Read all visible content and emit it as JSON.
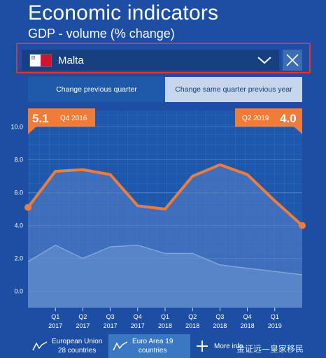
{
  "header": {
    "title": "Economic indicators",
    "subtitle": "GDP - volume (% change)"
  },
  "country_select": {
    "selected": "Malta",
    "flag_icon": "malta-flag-icon",
    "dropdown_icon": "chevron-down-icon",
    "clear_icon": "close-icon"
  },
  "toggle": {
    "options": [
      "Change previous quarter",
      "Change same quarter previous year"
    ],
    "active_index": 1
  },
  "callouts": {
    "start_value": "5.1",
    "start_period": "Q4 2016",
    "end_period": "Q2 2019",
    "end_value": "4.0"
  },
  "legend": {
    "eu_line1": "European Union",
    "eu_line2": "28 countries",
    "ea_line1": "Euro Area 19",
    "ea_line2": "countries",
    "more": "More info",
    "more_icon": "plus-icon"
  },
  "watermark": "金证远—皇家移民",
  "colors": {
    "background": "#1c4fa3",
    "accent": "#f07c3a",
    "select_highlight": "#e0342c"
  },
  "chart_data": {
    "type": "area",
    "title": "GDP - volume (% change)",
    "ylim": [
      -1,
      11
    ],
    "yticks": [
      "10.0",
      "8.0",
      "6.0",
      "4.0",
      "2.0",
      "0.0"
    ],
    "ytick_values": [
      10,
      8,
      6,
      4,
      2,
      0
    ],
    "categories": [
      "Q4 2016",
      "Q1 2017",
      "Q2 2017",
      "Q3 2017",
      "Q4 2017",
      "Q1 2018",
      "Q2 2018",
      "Q3 2018",
      "Q4 2018",
      "Q1 2019",
      "Q2 2019"
    ],
    "x_tick_labels": [
      {
        "q": "Q1",
        "y": "2017"
      },
      {
        "q": "Q2",
        "y": "2017"
      },
      {
        "q": "Q3",
        "y": "2017"
      },
      {
        "q": "Q4",
        "y": "2017"
      },
      {
        "q": "Q1",
        "y": "2018"
      },
      {
        "q": "Q2",
        "y": "2018"
      },
      {
        "q": "Q3",
        "y": "2018"
      },
      {
        "q": "Q4",
        "y": "2018"
      },
      {
        "q": "Q1",
        "y": "2019"
      }
    ],
    "grid": true,
    "series": [
      {
        "name": "Malta",
        "values": [
          5.1,
          7.3,
          7.4,
          7.1,
          5.2,
          5.0,
          7.0,
          7.7,
          7.1,
          5.5,
          4.0
        ]
      },
      {
        "name": "Euro Area 19 countries",
        "values": [
          1.8,
          2.8,
          2.0,
          2.7,
          2.8,
          2.3,
          2.3,
          1.6,
          1.4,
          1.2,
          1.0
        ]
      }
    ]
  }
}
